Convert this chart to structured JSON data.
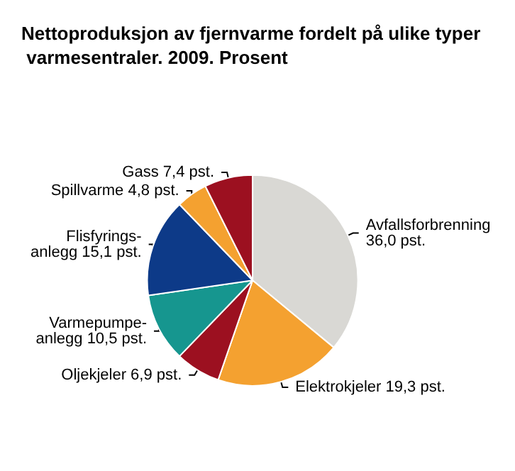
{
  "chart_data": {
    "type": "pie",
    "title": "Nettoproduksjon av fjernvarme fordelt på ulike typer varmesentraler. 2009. Prosent",
    "categories": [
      "Avfallsforbrenning",
      "Elektrokjeler",
      "Oljekjeler",
      "Varmepumpe-\nanlegg",
      "Flisfyrings-\nanlegg",
      "Spillvarme",
      "Gass"
    ],
    "values": [
      36.0,
      19.3,
      6.9,
      10.5,
      15.1,
      4.8,
      7.4
    ],
    "value_labels": [
      "36,0 pst.",
      "19,3 pst.",
      "6,9 pst.",
      "10,5 pst.",
      "15,1 pst.",
      "4,8 pst.",
      "7,4 pst."
    ],
    "colors": [
      "#d9d8d4",
      "#f4a130",
      "#9c1020",
      "#16968f",
      "#0d3a88",
      "#f4a130",
      "#9c1020"
    ]
  }
}
